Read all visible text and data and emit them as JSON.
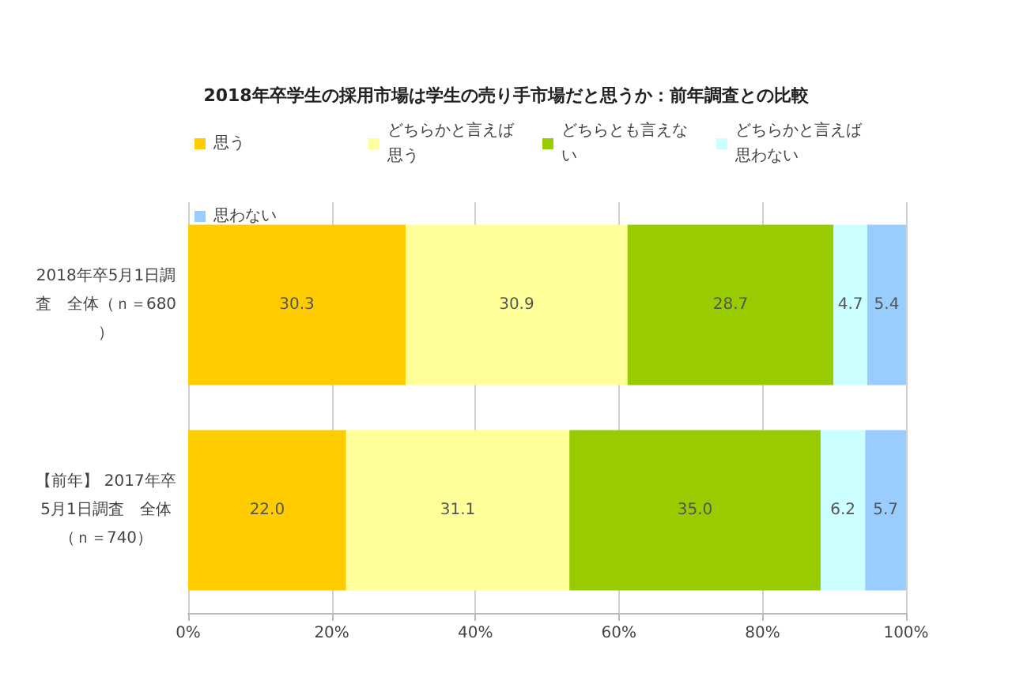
{
  "chart_data": {
    "type": "bar",
    "orientation": "horizontal",
    "stacked": true,
    "title": "2018年卒学生の採用市場は学生の売り手市場だと思うか：前年調査との比較",
    "categories": [
      "2018年卒5月1日調査　全体（ｎ＝680）",
      "【前年】 2017年卒5月1日調査　全体（ｎ＝740）"
    ],
    "series": [
      {
        "name": "思う",
        "color": "#ffcc00",
        "values": [
          30.3,
          22
        ],
        "value_labels": [
          "30.3",
          "22.0"
        ]
      },
      {
        "name": "どちらかと言えば思う",
        "color": "#ffff99",
        "values": [
          30.9,
          31.1
        ]
      },
      {
        "name": "どちらとも言えない",
        "color": "#99cc00",
        "values": [
          28.7,
          35
        ],
        "value_labels": [
          "28.7",
          "35.0"
        ]
      },
      {
        "name": "どちらかと言えば思わない",
        "color": "#ccffff",
        "values": [
          4.7,
          6.2
        ]
      },
      {
        "name": "思わない",
        "color": "#99ccff",
        "values": [
          5.4,
          5.7
        ]
      }
    ],
    "xlim": [
      0,
      100
    ],
    "xticks": [
      {
        "value": 0,
        "label": "0%"
      },
      {
        "value": 20,
        "label": "20%"
      },
      {
        "value": 40,
        "label": "40%"
      },
      {
        "value": 60,
        "label": "60%"
      },
      {
        "value": 80,
        "label": "80%"
      },
      {
        "value": 100,
        "label": "100%"
      }
    ],
    "grid": "x",
    "legend": "top",
    "data_labels": true
  }
}
